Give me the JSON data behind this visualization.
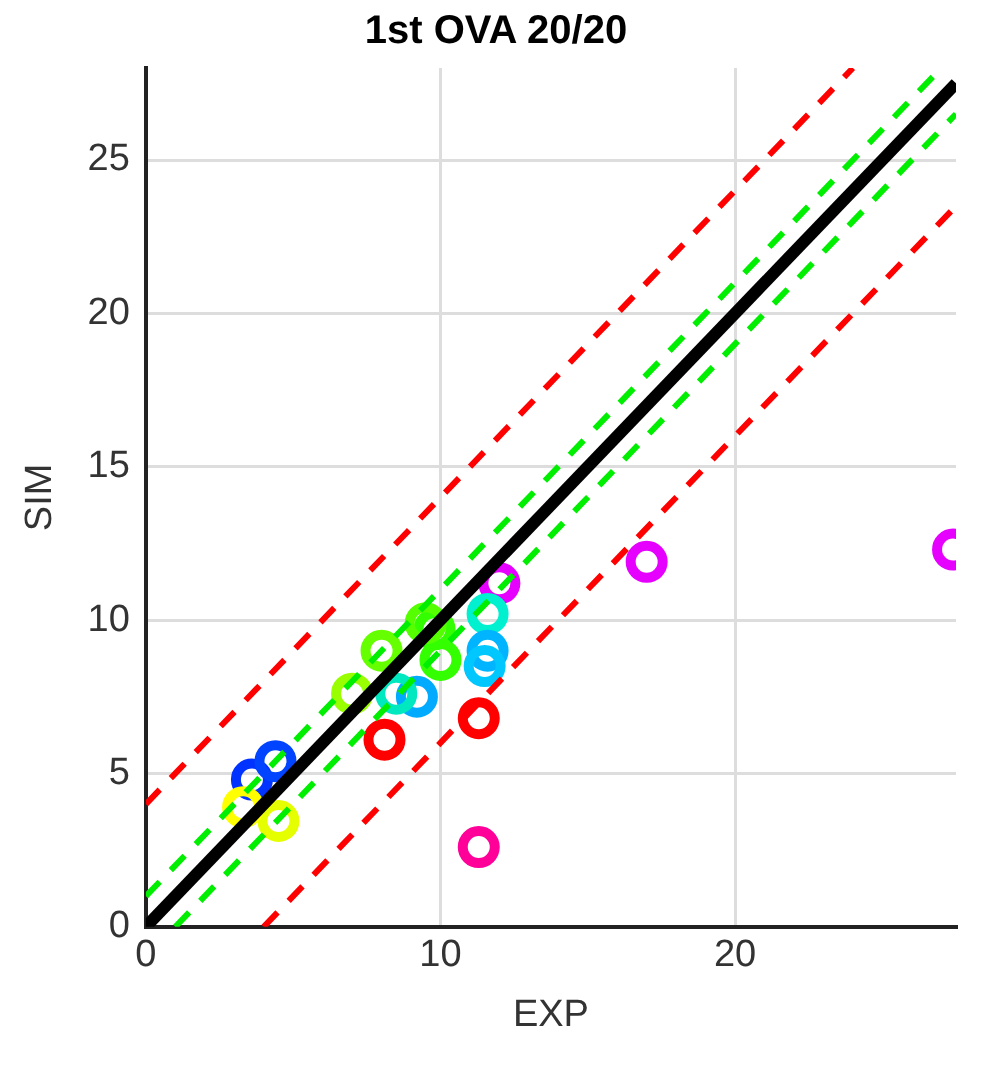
{
  "chart_data": {
    "type": "scatter",
    "title": "1st OVA 20/20",
    "xlabel": "EXP",
    "ylabel": "SIM",
    "xlim": [
      0,
      27.5
    ],
    "ylim": [
      0,
      28
    ],
    "xticks": [
      0,
      10,
      20
    ],
    "yticks": [
      0,
      5,
      10,
      15,
      20,
      25
    ],
    "grid": true,
    "legend": false,
    "series": [
      {
        "type": "line",
        "color": "#000000",
        "line_style": "solid",
        "marker": "none",
        "x": [
          0,
          27.5
        ],
        "values": [
          0,
          27.5
        ]
      },
      {
        "type": "line",
        "color": "#00ee00",
        "line_style": "dashed",
        "marker": "none",
        "x": [
          0,
          27
        ],
        "values": [
          1,
          28
        ]
      },
      {
        "type": "line",
        "color": "#00ee00",
        "line_style": "dashed",
        "marker": "none",
        "x": [
          1,
          27.5
        ],
        "values": [
          0,
          26.5
        ]
      },
      {
        "type": "line",
        "color": "#ff0000",
        "line_style": "dashed",
        "marker": "none",
        "x": [
          0,
          24
        ],
        "values": [
          4,
          28
        ]
      },
      {
        "type": "line",
        "color": "#ff0000",
        "line_style": "dashed",
        "marker": "none",
        "x": [
          4,
          27.5
        ],
        "values": [
          0,
          23.5
        ]
      },
      {
        "marker": "circle",
        "x": [
          17.0,
          27.4,
          12.0,
          11.3,
          8.1,
          11.3,
          11.6,
          11.6,
          11.5,
          9.2,
          8.5,
          10.0,
          9.8,
          9.5,
          8.0,
          7.0,
          3.6,
          4.4,
          4.5,
          3.3
        ],
        "values": [
          11.9,
          12.3,
          11.2,
          2.6,
          6.1,
          6.8,
          10.2,
          9.0,
          8.5,
          7.5,
          7.6,
          8.7,
          9.7,
          9.9,
          9.0,
          7.6,
          4.8,
          5.4,
          3.45,
          3.9
        ],
        "colors": [
          "#e600ff",
          "#e600ff",
          "#e600ff",
          "#ff0099",
          "#ff0000",
          "#ff0000",
          "#00f0d0",
          "#00b4ff",
          "#00c8ff",
          "#00aaff",
          "#00e8c0",
          "#33ff00",
          "#33ff00",
          "#55ff00",
          "#66ff00",
          "#99ff00",
          "#0033ff",
          "#0044ff",
          "#e6ff00",
          "#ffff00"
        ]
      }
    ]
  }
}
